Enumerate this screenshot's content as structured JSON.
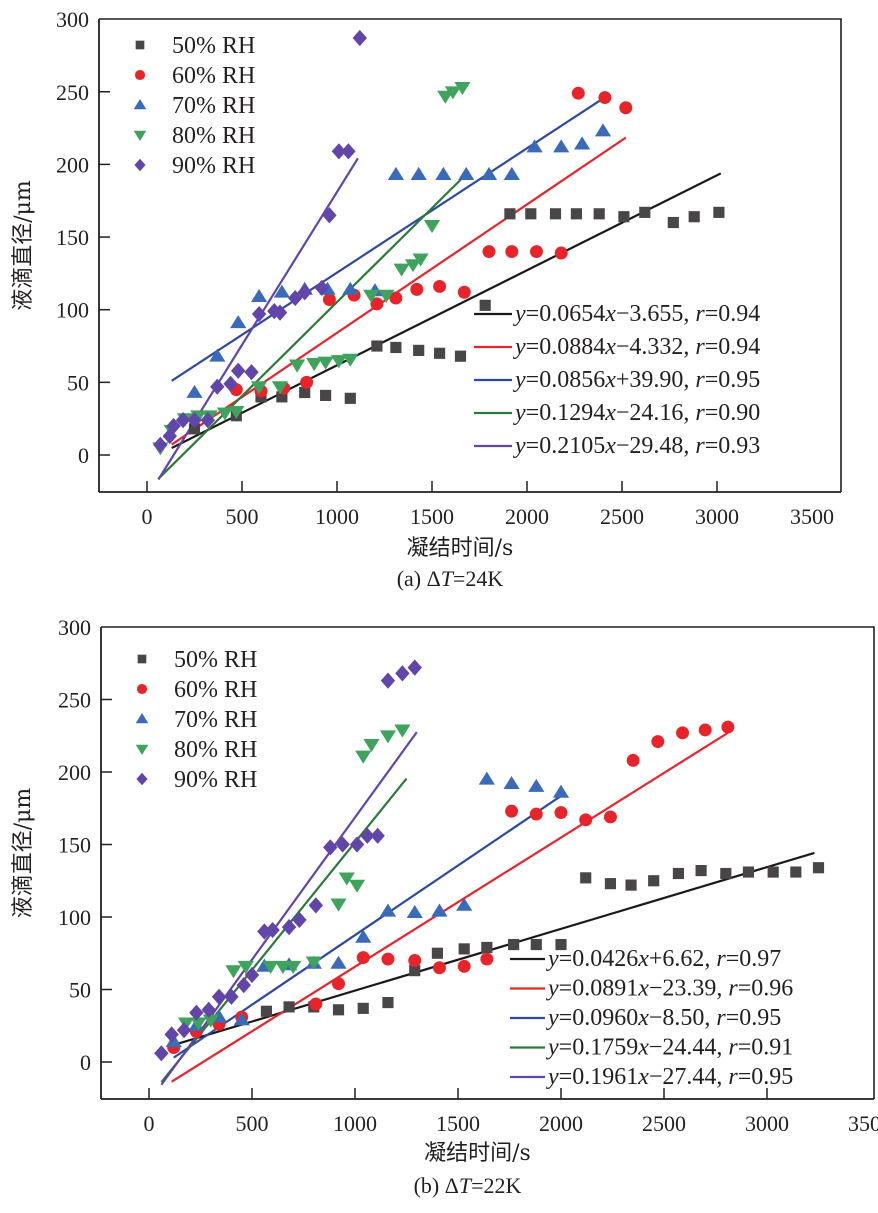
{
  "chart_data": [
    {
      "type": "scatter",
      "panel_id": "a",
      "caption": "(a) ΔT=24K",
      "caption_prefix": "(a) Δ",
      "caption_italic": "T",
      "caption_suffix": "=24K",
      "xlabel": "凝结时间/s",
      "ylabel": "液滴直径/μm",
      "xlim": [
        -250,
        3500
      ],
      "ylim": [
        -25,
        300
      ],
      "xticks": [
        0,
        500,
        1000,
        1500,
        2000,
        2500,
        3000,
        3500
      ],
      "yticks": [
        0,
        50,
        100,
        150,
        200,
        250,
        300
      ],
      "grid": false,
      "legend_position": "top-left",
      "fit_legend_position": "bottom-right",
      "series": [
        {
          "name": "50% RH",
          "marker": "square",
          "color": "#4a4647",
          "line_color": "#1a1a1a",
          "fit": {
            "slope": 0.0654,
            "intercept": -3.655,
            "x_range": [
              130,
              3020
            ],
            "label": "y=0.0654x−3.655, r=0.94",
            "eq_body": "=0.0654",
            "eq_x_tail": "−3.655, ",
            "r_value": "=0.94",
            "sign": "−",
            "const": "3.655"
          },
          "points": [
            [
              250,
              18
            ],
            [
              470,
              27
            ],
            [
              600,
              40
            ],
            [
              710,
              40
            ],
            [
              830,
              43
            ],
            [
              940,
              41
            ],
            [
              1070,
              39
            ],
            [
              1210,
              75
            ],
            [
              1310,
              74
            ],
            [
              1430,
              72
            ],
            [
              1540,
              70
            ],
            [
              1650,
              68
            ],
            [
              1780,
              103
            ],
            [
              1910,
              166
            ],
            [
              2020,
              166
            ],
            [
              2150,
              166
            ],
            [
              2260,
              166
            ],
            [
              2380,
              166
            ],
            [
              2510,
              164
            ],
            [
              2620,
              167
            ],
            [
              2770,
              160
            ],
            [
              2880,
              164
            ],
            [
              3010,
              167
            ]
          ]
        },
        {
          "name": "60% RH",
          "marker": "circle",
          "color": "#e8242b",
          "line_color": "#e8242b",
          "fit": {
            "slope": 0.0884,
            "intercept": -4.332,
            "x_range": [
              130,
              2520
            ],
            "label": "y=0.0884x−4.332, r=0.94"
          },
          "points": [
            [
              470,
              45
            ],
            [
              600,
              44
            ],
            [
              720,
              46
            ],
            [
              840,
              50
            ],
            [
              960,
              107
            ],
            [
              1090,
              110
            ],
            [
              1210,
              104
            ],
            [
              1310,
              108
            ],
            [
              1420,
              114
            ],
            [
              1540,
              116
            ],
            [
              1670,
              112
            ],
            [
              1800,
              140
            ],
            [
              1920,
              140
            ],
            [
              2050,
              140
            ],
            [
              2180,
              139
            ],
            [
              2270,
              249
            ],
            [
              2410,
              246
            ],
            [
              2520,
              239
            ]
          ]
        },
        {
          "name": "70% RH",
          "marker": "triangle-up",
          "color": "#3a6ab8",
          "line_color": "#2e4a9e",
          "fit": {
            "slope": 0.0856,
            "intercept": 39.9,
            "x_range": [
              130,
              2400
            ],
            "label": "y=0.0856x+39.90, r=0.95"
          },
          "points": [
            [
              250,
              43
            ],
            [
              370,
              68
            ],
            [
              480,
              91
            ],
            [
              590,
              109
            ],
            [
              710,
              112
            ],
            [
              830,
              114
            ],
            [
              950,
              114
            ],
            [
              1070,
              114
            ],
            [
              1200,
              113
            ],
            [
              1310,
              193
            ],
            [
              1430,
              193
            ],
            [
              1560,
              193
            ],
            [
              1680,
              193
            ],
            [
              1800,
              193
            ],
            [
              1920,
              193
            ],
            [
              2040,
              212
            ],
            [
              2180,
              212
            ],
            [
              2290,
              214
            ],
            [
              2400,
              223
            ]
          ]
        },
        {
          "name": "80% RH",
          "marker": "triangle-down",
          "color": "#3fa35d",
          "line_color": "#2b7a3a",
          "fit": {
            "slope": 0.1294,
            "intercept": -24.16,
            "x_range": [
              60,
              1660
            ],
            "label": "y=0.1294x−24.16, r=0.90"
          },
          "points": [
            [
              70,
              5
            ],
            [
              130,
              17
            ],
            [
              200,
              25
            ],
            [
              270,
              27
            ],
            [
              330,
              27
            ],
            [
              410,
              29
            ],
            [
              470,
              30
            ],
            [
              590,
              47
            ],
            [
              700,
              47
            ],
            [
              790,
              62
            ],
            [
              880,
              63
            ],
            [
              940,
              64
            ],
            [
              1010,
              65
            ],
            [
              1070,
              66
            ],
            [
              1180,
              110
            ],
            [
              1260,
              110
            ],
            [
              1340,
              128
            ],
            [
              1400,
              131
            ],
            [
              1440,
              135
            ],
            [
              1500,
              158
            ],
            [
              1570,
              247
            ],
            [
              1610,
              250
            ],
            [
              1660,
              253
            ]
          ]
        },
        {
          "name": "90% RH",
          "marker": "diamond",
          "color": "#6245a8",
          "line_color": "#6245a8",
          "fit": {
            "slope": 0.2105,
            "intercept": -29.48,
            "x_range": [
              60,
              1110
            ],
            "label": "y=0.2105x−29.48, r=0.93"
          },
          "points": [
            [
              70,
              7
            ],
            [
              120,
              13
            ],
            [
              140,
              20
            ],
            [
              190,
              24
            ],
            [
              250,
              24
            ],
            [
              320,
              24
            ],
            [
              370,
              47
            ],
            [
              440,
              49
            ],
            [
              480,
              58
            ],
            [
              550,
              57
            ],
            [
              590,
              97
            ],
            [
              670,
              99
            ],
            [
              700,
              98
            ],
            [
              780,
              108
            ],
            [
              830,
              112
            ],
            [
              920,
              115
            ],
            [
              960,
              165
            ],
            [
              1010,
              209
            ],
            [
              1060,
              209
            ],
            [
              1120,
              287
            ]
          ]
        }
      ]
    },
    {
      "type": "scatter",
      "panel_id": "b",
      "caption": "(b) ΔT=22K",
      "caption_prefix": "(b) Δ",
      "caption_italic": "T",
      "caption_suffix": "=22K",
      "xlabel": "凝结时间/s",
      "ylabel": "液滴直径/μm",
      "xlim": [
        -250,
        3500
      ],
      "ylim": [
        -25,
        300
      ],
      "xticks": [
        0,
        500,
        1000,
        1500,
        2000,
        2500,
        3000,
        3500
      ],
      "yticks": [
        0,
        50,
        100,
        150,
        200,
        250,
        300
      ],
      "grid": false,
      "legend_position": "top-left",
      "fit_legend_position": "bottom-right",
      "series": [
        {
          "name": "50% RH",
          "marker": "square",
          "color": "#4a4647",
          "line_color": "#1a1a1a",
          "fit": {
            "slope": 0.0426,
            "intercept": 6.62,
            "x_range": [
              110,
              3230
            ],
            "label": "y=0.0426x+6.62, r=0.97"
          },
          "points": [
            [
              570,
              35
            ],
            [
              680,
              38
            ],
            [
              800,
              38
            ],
            [
              920,
              36
            ],
            [
              1040,
              37
            ],
            [
              1160,
              41
            ],
            [
              1290,
              63
            ],
            [
              1400,
              75
            ],
            [
              1530,
              78
            ],
            [
              1640,
              79
            ],
            [
              1770,
              81
            ],
            [
              1880,
              81
            ],
            [
              2000,
              81
            ],
            [
              2120,
              127
            ],
            [
              2240,
              123
            ],
            [
              2340,
              122
            ],
            [
              2450,
              125
            ],
            [
              2570,
              130
            ],
            [
              2680,
              132
            ],
            [
              2800,
              130
            ],
            [
              2910,
              131
            ],
            [
              3030,
              131
            ],
            [
              3140,
              131
            ],
            [
              3250,
              134
            ]
          ]
        },
        {
          "name": "60% RH",
          "marker": "circle",
          "color": "#e8242b",
          "line_color": "#e8242b",
          "fit": {
            "slope": 0.0891,
            "intercept": -23.39,
            "x_range": [
              110,
              2810
            ],
            "label": "y=0.0891x−23.39, r=0.96"
          },
          "points": [
            [
              120,
              10
            ],
            [
              230,
              21
            ],
            [
              340,
              26
            ],
            [
              450,
              31
            ],
            [
              810,
              40
            ],
            [
              920,
              54
            ],
            [
              1040,
              72
            ],
            [
              1160,
              71
            ],
            [
              1290,
              70
            ],
            [
              1410,
              65
            ],
            [
              1530,
              66
            ],
            [
              1640,
              71
            ],
            [
              1760,
              173
            ],
            [
              1880,
              171
            ],
            [
              2000,
              172
            ],
            [
              2120,
              167
            ],
            [
              2240,
              169
            ],
            [
              2350,
              208
            ],
            [
              2470,
              221
            ],
            [
              2590,
              227
            ],
            [
              2700,
              229
            ],
            [
              2810,
              231
            ]
          ]
        },
        {
          "name": "70% RH",
          "marker": "triangle-up",
          "color": "#3a6ab8",
          "line_color": "#2e4a9e",
          "fit": {
            "slope": 0.096,
            "intercept": -8.5,
            "x_range": [
              120,
              2000
            ],
            "label": "y=0.0960x−8.50, r=0.95"
          },
          "points": [
            [
              120,
              14
            ],
            [
              230,
              25
            ],
            [
              340,
              31
            ],
            [
              450,
              29
            ],
            [
              560,
              66
            ],
            [
              680,
              67
            ],
            [
              800,
              68
            ],
            [
              920,
              68
            ],
            [
              1040,
              86
            ],
            [
              1160,
              104
            ],
            [
              1290,
              103
            ],
            [
              1410,
              104
            ],
            [
              1530,
              108
            ],
            [
              1640,
              195
            ],
            [
              1760,
              192
            ],
            [
              1880,
              190
            ],
            [
              2000,
              186
            ]
          ]
        },
        {
          "name": "80% RH",
          "marker": "triangle-down",
          "color": "#3fa35d",
          "line_color": "#2b7a3a",
          "fit": {
            "slope": 0.1759,
            "intercept": -24.44,
            "x_range": [
              60,
              1250
            ],
            "label": "y=0.1759x−24.44, r=0.91"
          },
          "points": [
            [
              180,
              27
            ],
            [
              240,
              27
            ],
            [
              300,
              29
            ],
            [
              410,
              63
            ],
            [
              470,
              66
            ],
            [
              590,
              66
            ],
            [
              650,
              66
            ],
            [
              700,
              66
            ],
            [
              800,
              69
            ],
            [
              920,
              109
            ],
            [
              960,
              127
            ],
            [
              1010,
              122
            ],
            [
              1040,
              211
            ],
            [
              1080,
              219
            ],
            [
              1160,
              225
            ],
            [
              1230,
              229
            ]
          ]
        },
        {
          "name": "90% RH",
          "marker": "diamond",
          "color": "#6245a8",
          "line_color": "#6245a8",
          "fit": {
            "slope": 0.1961,
            "intercept": -27.44,
            "x_range": [
              60,
              1300
            ],
            "label": "y=0.1961x−27.44, r=0.95"
          },
          "points": [
            [
              60,
              6
            ],
            [
              110,
              19
            ],
            [
              170,
              22
            ],
            [
              230,
              34
            ],
            [
              290,
              36
            ],
            [
              340,
              45
            ],
            [
              400,
              45
            ],
            [
              460,
              53
            ],
            [
              500,
              60
            ],
            [
              560,
              90
            ],
            [
              600,
              91
            ],
            [
              680,
              93
            ],
            [
              730,
              98
            ],
            [
              810,
              108
            ],
            [
              880,
              148
            ],
            [
              940,
              150
            ],
            [
              1010,
              150
            ],
            [
              1060,
              156
            ],
            [
              1110,
              156
            ],
            [
              1160,
              263
            ],
            [
              1230,
              268
            ],
            [
              1290,
              272
            ]
          ]
        }
      ]
    }
  ]
}
